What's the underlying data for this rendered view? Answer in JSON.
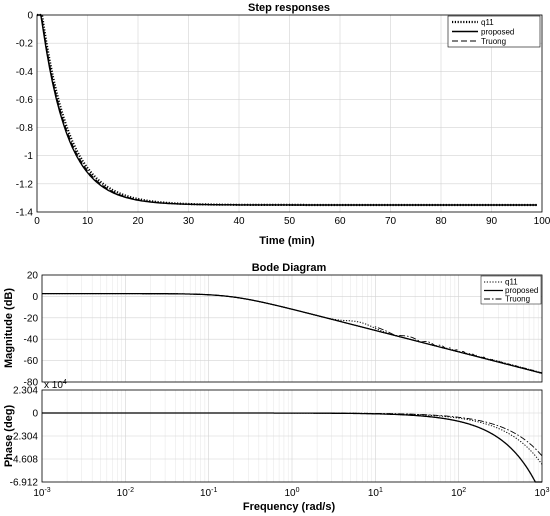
{
  "chart_data": [
    {
      "type": "line",
      "title": "Step responses",
      "xlabel": "Time (min)",
      "ylabel": "",
      "xlim": [
        0,
        100
      ],
      "ylim": [
        -1.4,
        0
      ],
      "xticks": [
        "0",
        "10",
        "20",
        "30",
        "40",
        "50",
        "60",
        "70",
        "80",
        "90",
        "100"
      ],
      "yticks": [
        "0",
        "-0.2",
        "-0.4",
        "-0.6",
        "-0.8",
        "-1",
        "-1.2",
        "-1.4"
      ],
      "grid": true,
      "legend_position": "top-right",
      "series": [
        {
          "name": "q11",
          "style": "dotted",
          "gain": -1.35,
          "tau": 5.5,
          "delay": 1.0
        },
        {
          "name": "proposed",
          "style": "solid",
          "gain": -1.35,
          "tau": 5.2,
          "delay": 0.8
        },
        {
          "name": "Truong",
          "style": "dashed",
          "gain": -1.35,
          "tau": 5.3,
          "delay": 0.9
        }
      ]
    },
    {
      "type": "line",
      "title": "Bode Diagram",
      "xlabel": "Frequency  (rad/s)",
      "xscale": "log",
      "xlim": [
        0.001,
        1000
      ],
      "xticks": [
        "10^-3",
        "10^-2",
        "10^-1",
        "10^0",
        "10^1",
        "10^2",
        "10^3"
      ],
      "grid": true,
      "legend_position": "top-right",
      "magnitude": {
        "ylabel": "Magnitude (dB)",
        "ylim": [
          -80,
          20
        ],
        "yticks": [
          "20",
          "0",
          "-20",
          "-40",
          "-60",
          "-80"
        ]
      },
      "phase": {
        "ylabel": "Phase (deg)",
        "exponent_label": "x 10^4",
        "ylim": [
          -6.912,
          2.304
        ],
        "yticks": [
          "2.304",
          "0",
          "-2.304",
          "-4.608",
          "-6.912"
        ]
      },
      "series": [
        {
          "name": "q11",
          "style": "dotted"
        },
        {
          "name": "proposed",
          "style": "solid"
        },
        {
          "name": "Truong",
          "style": "dashdot"
        }
      ],
      "dc_gain_db": 2.6,
      "corner_frequency": 0.19
    }
  ]
}
